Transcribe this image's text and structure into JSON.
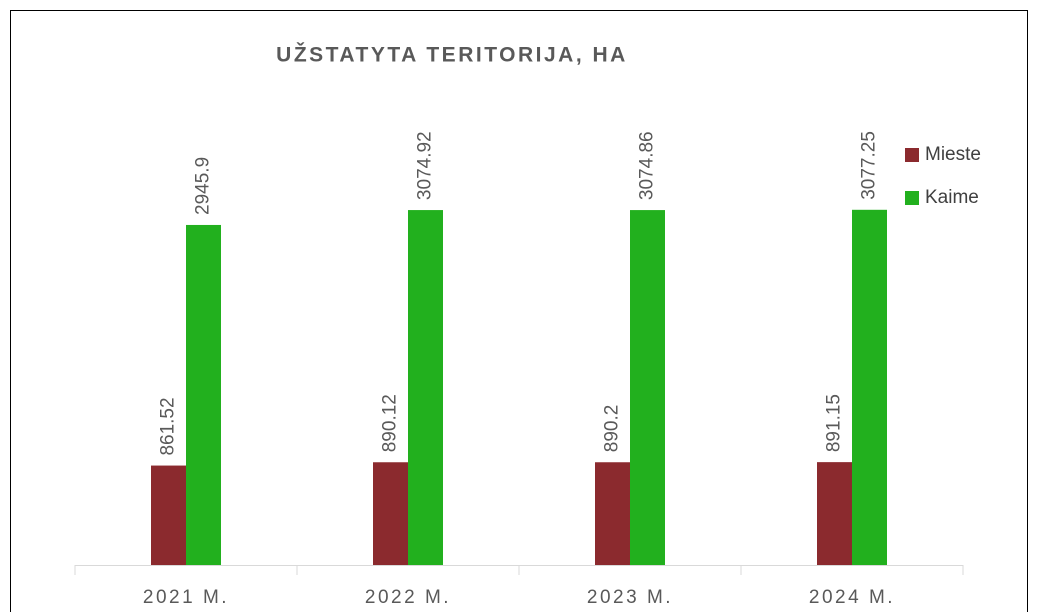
{
  "chart_data": {
    "type": "bar",
    "title": "UŽSTATYTA TERITORIJA, HA",
    "categories": [
      "2021 M.",
      "2022 M.",
      "2023 M.",
      "2024 M."
    ],
    "series": [
      {
        "name": "Mieste",
        "color": "#8b2a2e",
        "values": [
          861.52,
          890.12,
          890.2,
          891.15
        ]
      },
      {
        "name": "Kaime",
        "color": "#22b01e",
        "values": [
          2945.9,
          3074.92,
          3074.86,
          3077.25
        ]
      }
    ],
    "ylim": [
      0,
      3500
    ],
    "legend": "right"
  }
}
